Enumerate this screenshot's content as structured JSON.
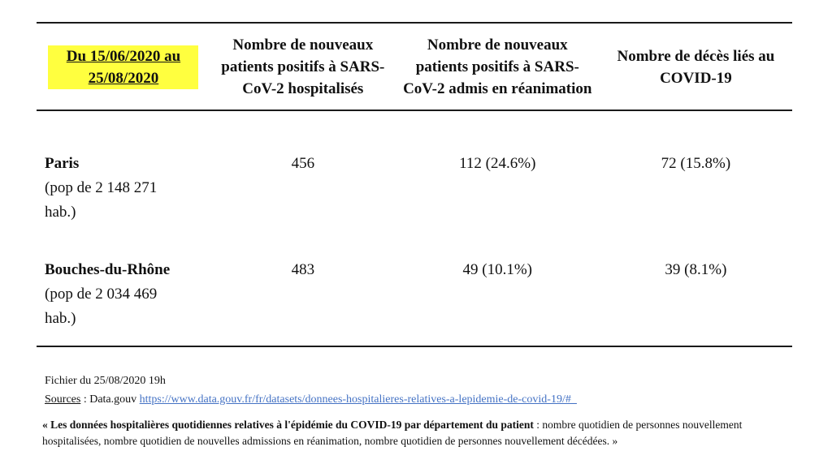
{
  "table": {
    "header": {
      "period": "Du 15/06/2020 au 25/08/2020",
      "col_hospitalised": "Nombre de nouveaux patients positifs à SARS-CoV-2 hospitalisés",
      "col_icu": "Nombre de nouveaux patients positifs à SARS-CoV-2 admis en réanimation",
      "col_deaths": "Nombre de décès liés au COVID-19"
    },
    "rows": [
      {
        "name": "Paris",
        "population": "(pop de 2 148 271 hab.)",
        "hospitalised": "456",
        "icu": "112 (24.6%)",
        "deaths": "72 (15.8%)"
      },
      {
        "name": "Bouches-du-Rhône",
        "population": "(pop de 2 034 469 hab.)",
        "hospitalised": "483",
        "icu": "49 (10.1%)",
        "deaths": "39 (8.1%)"
      }
    ]
  },
  "footer": {
    "file_info": "Fichier du 25/08/2020 19h",
    "sources_label": "Sources",
    "sources_middle": " : Data.gouv ",
    "source_url": "https://www.data.gouv.fr/fr/datasets/donnees-hospitalieres-relatives-a-lepidemie-de-covid-19/#_",
    "quote_bold": "« Les données hospitalières quotidiennes relatives à l'épidémie du COVID-19 par département du patient",
    "quote_rest": " : nombre quotidien de personnes nouvellement hospitalisées, nombre quotidien de nouvelles admissions en réanimation, nombre quotidien de personnes nouvellement décédées. »"
  },
  "colors": {
    "highlight": "#ffff3f",
    "link": "#4472c4",
    "text": "#111111"
  }
}
